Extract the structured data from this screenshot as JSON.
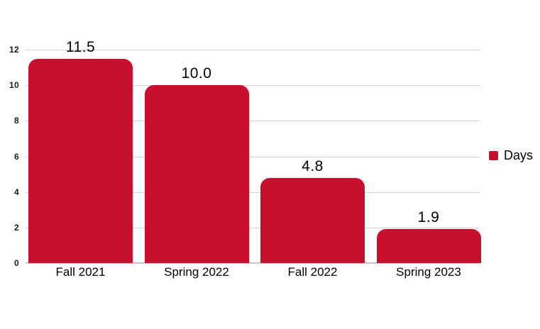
{
  "chart_data": {
    "type": "bar",
    "title": "",
    "xlabel": "",
    "ylabel": "",
    "categories": [
      "Fall 2021",
      "Spring 2022",
      "Fall 2022",
      "Spring 2023"
    ],
    "series": [
      {
        "name": "Days",
        "values": [
          11.5,
          10.0,
          4.8,
          1.9
        ],
        "color": "#C8102E"
      }
    ],
    "value_labels": [
      "11.5",
      "10.0",
      "4.8",
      "1.9"
    ],
    "ylim": [
      0,
      12
    ],
    "yticks": [
      "0",
      "2",
      "4",
      "6",
      "8",
      "10",
      "12"
    ],
    "grid": "horizontal-only",
    "legend_position": "middle-right",
    "colors": {
      "bar": "#C8102E",
      "gridline": "#D5D5D5",
      "baseline": "#C8C8C9",
      "label_text": "#000000",
      "tick_text": "#1B1B1B",
      "background": "#FFFFFF"
    }
  },
  "legend": {
    "items": [
      {
        "label": "Days",
        "swatch_color": "#C8102E"
      }
    ]
  }
}
